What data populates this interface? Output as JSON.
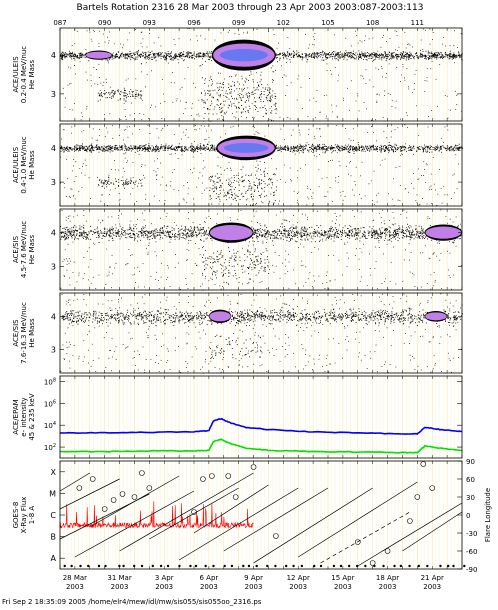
{
  "header": {
    "title": "Bartels Rotation 2316    28 Mar 2003 through 23 Apr 2003    2003:087-2003:113"
  },
  "footer": {
    "text": "Fri Sep  2 18:35:09 2005    /home/elr4/mew/idl/mw/sis055/sis055oo_2316.ps"
  },
  "chart_data": {
    "type": "multi-panel time series",
    "doy_ticks": [
      "087",
      "090",
      "093",
      "096",
      "099",
      "102",
      "105",
      "108",
      "111"
    ],
    "date_ticks": [
      {
        "day": "28 Mar",
        "year": "2003"
      },
      {
        "day": "31 Mar",
        "year": "2003"
      },
      {
        "day": "3 Apr",
        "year": "2003"
      },
      {
        "day": "6 Apr",
        "year": "2003"
      },
      {
        "day": "9 Apr",
        "year": "2003"
      },
      {
        "day": "12 Apr",
        "year": "2003"
      },
      {
        "day": "15 Apr",
        "year": "2003"
      },
      {
        "day": "18 Apr",
        "year": "2003"
      },
      {
        "day": "21 Apr",
        "year": "2003"
      }
    ],
    "x_range_doy": [
      87,
      114
    ],
    "grid": true,
    "panels": [
      {
        "kind": "mass",
        "label_lines": [
          "ACE/ULEIS",
          "0.2-0.4 MeV/nuc",
          "He Mass"
        ],
        "yticks": [
          "4",
          "3"
        ],
        "yrange": [
          2.3,
          4.7
        ],
        "bands": [
          {
            "y": 4.0,
            "x0": 87,
            "x1": 114,
            "density": 1.0,
            "spread": 0.06
          },
          {
            "y": 3.0,
            "x0": 89.5,
            "x1": 92.5,
            "density": 0.5,
            "spread": 0.08
          },
          {
            "y": 2.9,
            "x0": 96.5,
            "x1": 101.5,
            "density": 0.9,
            "spread": 0.35
          }
        ],
        "highlights": [
          {
            "x0": 97.2,
            "x1": 101.5,
            "y": 4.0,
            "h": 0.2,
            "core": true
          },
          {
            "x0": 88.7,
            "x1": 90.5,
            "y": 4.0,
            "h": 0.06,
            "core": false
          }
        ]
      },
      {
        "kind": "mass",
        "label_lines": [
          "ACE/ULEIS",
          "0.4-1.0 MeV/nuc",
          "He Mass"
        ],
        "yticks": [
          "4",
          "3"
        ],
        "yrange": [
          2.3,
          4.7
        ],
        "bands": [
          {
            "y": 4.0,
            "x0": 87,
            "x1": 114,
            "density": 0.9,
            "spread": 0.06
          },
          {
            "y": 3.0,
            "x0": 89.5,
            "x1": 92.5,
            "density": 0.4,
            "spread": 0.08
          },
          {
            "y": 2.9,
            "x0": 97,
            "x1": 101.5,
            "density": 0.8,
            "spread": 0.35
          }
        ],
        "highlights": [
          {
            "x0": 97.5,
            "x1": 101.5,
            "y": 4.0,
            "h": 0.18,
            "core": true
          }
        ]
      },
      {
        "kind": "mass",
        "label_lines": [
          "ACE/SIS",
          "4.5-7.6 MeV/nuc",
          "He Mass"
        ],
        "yticks": [
          "4",
          "3"
        ],
        "yrange": [
          2.3,
          4.7
        ],
        "bands": [
          {
            "y": 4.0,
            "x0": 87,
            "x1": 114,
            "density": 1.0,
            "spread": 0.12
          },
          {
            "y": 3.1,
            "x0": 96.5,
            "x1": 101,
            "density": 0.6,
            "spread": 0.3
          }
        ],
        "highlights": [
          {
            "x0": 97,
            "x1": 100,
            "y": 4.0,
            "h": 0.15,
            "core": false
          },
          {
            "x0": 111.5,
            "x1": 114,
            "y": 4.0,
            "h": 0.12,
            "core": false
          }
        ]
      },
      {
        "kind": "mass",
        "label_lines": [
          "ACE/SIS",
          "7.6-16.3 MeV/nuc",
          "He Mass"
        ],
        "yticks": [
          "4",
          "3"
        ],
        "yrange": [
          2.3,
          4.7
        ],
        "bands": [
          {
            "y": 4.0,
            "x0": 87,
            "x1": 114,
            "density": 0.8,
            "spread": 0.12
          },
          {
            "y": 3.1,
            "x0": 97,
            "x1": 100.5,
            "density": 0.3,
            "spread": 0.25
          }
        ],
        "highlights": [
          {
            "x0": 97,
            "x1": 98.5,
            "y": 4.0,
            "h": 0.1,
            "core": false
          },
          {
            "x0": 111.5,
            "x1": 113,
            "y": 4.0,
            "h": 0.08,
            "core": false
          }
        ]
      },
      {
        "kind": "flux",
        "label_lines": [
          "ACE/EPAM",
          "e- intensity",
          "45 & 235 keV"
        ],
        "yticks": [
          "10^8",
          "10^6",
          "10^4",
          "10^2"
        ],
        "log_range": [
          1,
          8.5
        ],
        "series": [
          {
            "color": "#0000ff",
            "points": [
              [
                87,
                3.3
              ],
              [
                90,
                3.3
              ],
              [
                93,
                3.35
              ],
              [
                96,
                3.4
              ],
              [
                97,
                3.5
              ],
              [
                97.3,
                4.4
              ],
              [
                97.8,
                4.6
              ],
              [
                98.5,
                4.2
              ],
              [
                99.5,
                3.8
              ],
              [
                101,
                3.6
              ],
              [
                104,
                3.4
              ],
              [
                107,
                3.3
              ],
              [
                110,
                3.2
              ],
              [
                111,
                3.2
              ],
              [
                111.5,
                3.8
              ],
              [
                112.5,
                3.6
              ],
              [
                114,
                3.4
              ]
            ]
          },
          {
            "color": "#00e000",
            "points": [
              [
                87,
                1.6
              ],
              [
                90,
                1.6
              ],
              [
                93,
                1.65
              ],
              [
                96,
                1.65
              ],
              [
                97,
                1.7
              ],
              [
                97.3,
                2.5
              ],
              [
                97.8,
                2.7
              ],
              [
                98.5,
                2.3
              ],
              [
                99.5,
                1.9
              ],
              [
                101,
                1.7
              ],
              [
                104,
                1.6
              ],
              [
                107,
                1.55
              ],
              [
                110,
                1.5
              ],
              [
                111,
                1.5
              ],
              [
                111.5,
                2.1
              ],
              [
                112.5,
                1.9
              ],
              [
                114,
                1.7
              ]
            ]
          }
        ]
      },
      {
        "kind": "goes",
        "label_lines": [
          "GOES-8",
          "X-Ray Flux",
          "1-8 A"
        ],
        "yticks_left": [
          "X",
          "M",
          "C",
          "B",
          "A"
        ],
        "yticks_right": [
          "90",
          "60",
          "30",
          "0",
          "-30",
          "-60",
          "-90"
        ],
        "right_label": "Flare Longitude",
        "xray_color": "#ff0000",
        "xray_end_doy": 100,
        "flare_tracks": [
          {
            "x0": 87,
            "lon0": -40,
            "x1": 93,
            "lon1": 35
          },
          {
            "x0": 87,
            "lon0": 10,
            "x1": 91,
            "lon1": 60
          },
          {
            "x0": 87,
            "lon0": 40,
            "x1": 89,
            "lon1": 70
          },
          {
            "x0": 88,
            "lon0": -70,
            "x1": 96,
            "lon1": 40
          },
          {
            "x0": 89,
            "lon0": -20,
            "x1": 95,
            "lon1": 65
          },
          {
            "x0": 91,
            "lon0": -60,
            "x1": 100,
            "lon1": 70
          },
          {
            "x0": 93,
            "lon0": -40,
            "x1": 99,
            "lon1": 45
          },
          {
            "x0": 95,
            "lon0": -75,
            "x1": 103,
            "lon1": 45
          },
          {
            "x0": 96,
            "lon0": -30,
            "x1": 101,
            "lon1": 50
          },
          {
            "x0": 98,
            "lon0": -60,
            "x1": 105,
            "lon1": 45
          },
          {
            "x0": 100,
            "lon0": -80,
            "x1": 108,
            "lon1": 45
          },
          {
            "x0": 103,
            "lon0": -70,
            "x1": 111,
            "lon1": 55
          },
          {
            "x0": 107,
            "lon0": -85,
            "x1": 114,
            "lon1": 20
          },
          {
            "x0": 110,
            "lon0": -60,
            "x1": 114,
            "lon1": 5
          }
        ],
        "dashed_tracks": [
          {
            "x0": 104.5,
            "lon0": -80,
            "x1": 110.5,
            "lon1": 5
          }
        ],
        "flare_circles": [
          {
            "x": 88.3,
            "lon": 45
          },
          {
            "x": 89.2,
            "lon": 60
          },
          {
            "x": 90,
            "lon": 10
          },
          {
            "x": 90.6,
            "lon": 25
          },
          {
            "x": 91.2,
            "lon": 35
          },
          {
            "x": 92,
            "lon": 30
          },
          {
            "x": 92.5,
            "lon": 70
          },
          {
            "x": 93,
            "lon": 45
          },
          {
            "x": 96,
            "lon": 5
          },
          {
            "x": 96.6,
            "lon": 60
          },
          {
            "x": 97.2,
            "lon": 65
          },
          {
            "x": 98.3,
            "lon": 65
          },
          {
            "x": 98.8,
            "lon": 30
          },
          {
            "x": 100,
            "lon": 80
          },
          {
            "x": 101.5,
            "lon": -35
          },
          {
            "x": 107,
            "lon": -45
          },
          {
            "x": 108,
            "lon": -80
          },
          {
            "x": 109,
            "lon": -60
          },
          {
            "x": 110.5,
            "lon": -10
          },
          {
            "x": 111,
            "lon": 30
          },
          {
            "x": 111.4,
            "lon": 85
          },
          {
            "x": 112,
            "lon": 45
          }
        ]
      }
    ]
  }
}
